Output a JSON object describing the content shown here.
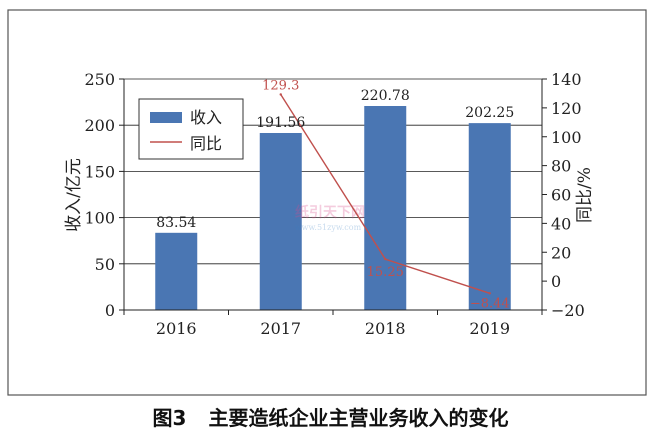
{
  "figure": {
    "number": "图3",
    "caption": "主要造纸企业主营业务收入的变化"
  },
  "colors": {
    "bar": "#4a76b3",
    "line": "#c0504d",
    "line_labels": "#c0504d",
    "frame": "#444444"
  },
  "watermark": {
    "text": "纸引天下网",
    "url": "www.51zyw.com"
  },
  "chart_data": {
    "type": "bar",
    "categories": [
      "2016",
      "2017",
      "2018",
      "2019"
    ],
    "series": [
      {
        "name": "收入",
        "type": "bar",
        "axis": "left",
        "values": [
          83.54,
          191.56,
          220.78,
          202.25
        ],
        "labels": [
          "83.54",
          "191.56",
          "220.78",
          "202.25"
        ]
      },
      {
        "name": "同比",
        "type": "line",
        "axis": "right",
        "x": [
          "2017",
          "2018",
          "2019"
        ],
        "values": [
          129.3,
          15.25,
          -8.44
        ],
        "labels": [
          "129.3",
          "15.25",
          "−8.44"
        ]
      }
    ],
    "ylabel": "收入/亿元",
    "y2label": "同比/%",
    "ylim": [
      0,
      250
    ],
    "y2lim": [
      -20,
      140
    ],
    "yticks": [
      "0",
      "50",
      "100",
      "150",
      "200",
      "250"
    ],
    "y2ticks": [
      "−20",
      "0",
      "20",
      "40",
      "60",
      "80",
      "100",
      "120",
      "140"
    ],
    "yticks_values": [
      0,
      50,
      100,
      150,
      200,
      250
    ],
    "y2ticks_values": [
      -20,
      0,
      20,
      40,
      60,
      80,
      100,
      120,
      140
    ],
    "grid": true,
    "legend": "top-left"
  }
}
